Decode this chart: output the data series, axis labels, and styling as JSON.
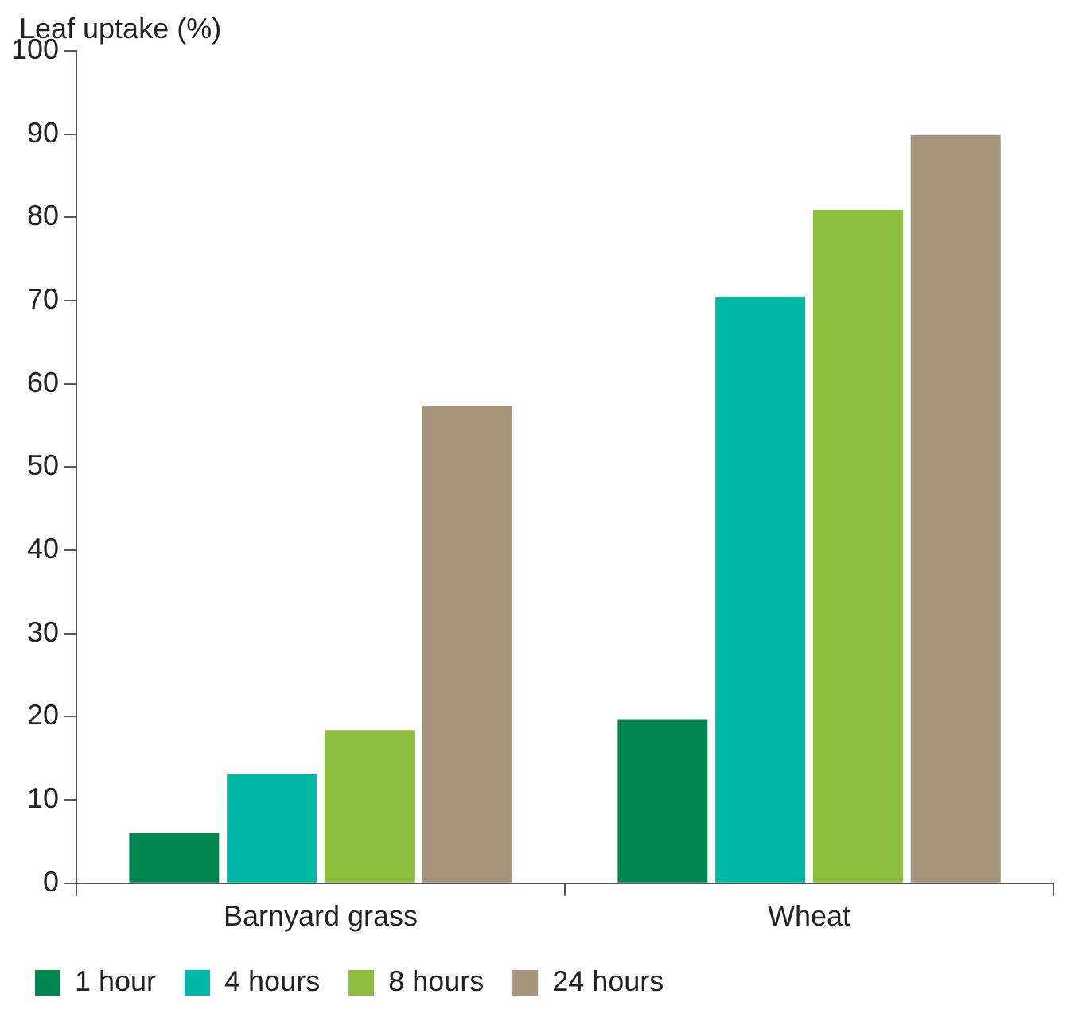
{
  "chart_data": {
    "type": "bar",
    "ylabel": "Leaf uptake (%)",
    "categories": [
      "Barnyard grass",
      "Wheat"
    ],
    "series": [
      {
        "name": "1 hour",
        "color": "#00874f",
        "values": [
          6,
          19.7
        ]
      },
      {
        "name": "4 hours",
        "color": "#00b8a5",
        "values": [
          13.1,
          70.5
        ]
      },
      {
        "name": "8 hours",
        "color": "#8cbd3f",
        "values": [
          18.4,
          80.9
        ]
      },
      {
        "name": "24 hours",
        "color": "#a4957c",
        "values": [
          57.4,
          89.9
        ]
      }
    ],
    "ylim": [
      0,
      100
    ],
    "yticks": [
      0,
      10,
      20,
      30,
      40,
      50,
      60,
      70,
      80,
      90,
      100
    ],
    "grid": false,
    "legend": "bottom left"
  }
}
